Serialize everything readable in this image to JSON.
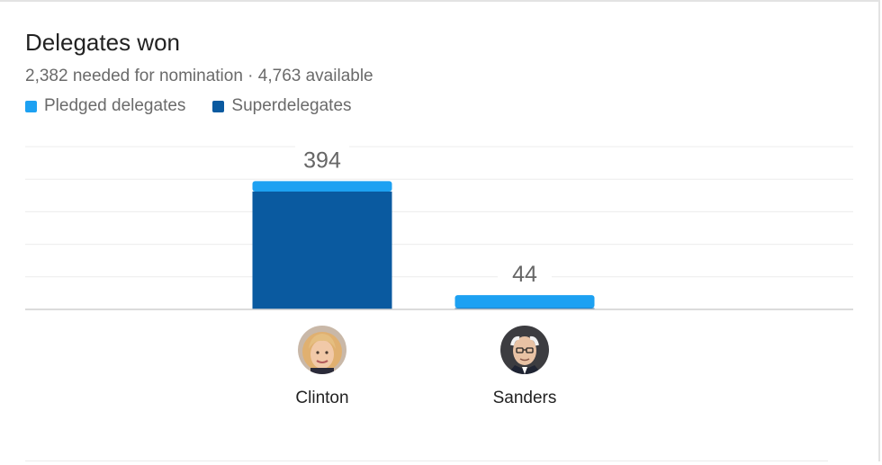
{
  "header": {
    "title": "Delegates won",
    "subtitle": "2,382 needed for nomination · 4,763 available"
  },
  "legend": [
    {
      "label": "Pledged delegates",
      "color": "#1da1f2"
    },
    {
      "label": "Superdelegates",
      "color": "#0a5aa0"
    }
  ],
  "chart_data": {
    "type": "bar",
    "stacked": true,
    "categories": [
      "Clinton",
      "Sanders"
    ],
    "series": [
      {
        "name": "Superdelegates",
        "values": [
          362,
          4
        ],
        "color": "#0a5aa0"
      },
      {
        "name": "Pledged delegates",
        "values": [
          32,
          40
        ],
        "color": "#1da1f2"
      }
    ],
    "totals": [
      394,
      44
    ],
    "total_labels": [
      "394",
      "44"
    ],
    "ylim": [
      0,
      500
    ],
    "grid": true,
    "legend_position": "top-left"
  },
  "candidates": [
    {
      "name": "Clinton",
      "avatar": "clinton-avatar"
    },
    {
      "name": "Sanders",
      "avatar": "sanders-avatar"
    }
  ]
}
